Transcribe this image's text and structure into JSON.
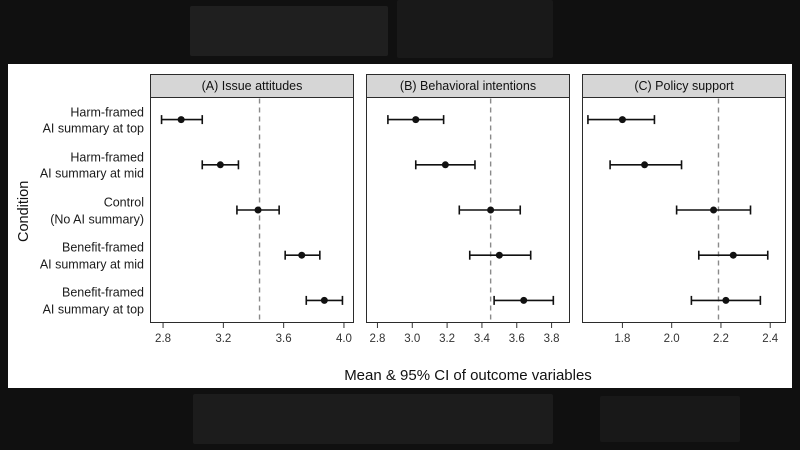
{
  "colors": {
    "letterbox": "#101010",
    "figure_bg": "#ffffff",
    "strip_bg": "#d6d6d6",
    "panel_border": "#2b2b2b",
    "point": "#111111",
    "error_bar": "#111111",
    "ref_line": "#8a8a8a",
    "tick_text": "#333333"
  },
  "chart_data": {
    "type": "scatter",
    "variant": "point-range (mean with 95% CI) forest plot, 3 facets, dashed reference line per facet",
    "ylabel": "Condition",
    "xlabel": "Mean & 95% CI of outcome variables",
    "legend": "none",
    "grid": "off",
    "categories": [
      [
        "Harm-framed",
        "AI summary at top"
      ],
      [
        "Harm-framed",
        "AI summary at mid"
      ],
      [
        "Control",
        "(No AI summary)"
      ],
      [
        "Benefit-framed",
        "AI summary at mid"
      ],
      [
        "Benefit-framed",
        "AI summary at top"
      ]
    ],
    "panels": [
      {
        "title": "(A) Issue attitudes",
        "xlim": [
          2.72,
          4.06
        ],
        "ticks": [
          2.8,
          3.2,
          3.6,
          4.0
        ],
        "ref": 3.44,
        "points": [
          {
            "mean": 2.92,
            "lo": 2.79,
            "hi": 3.06
          },
          {
            "mean": 3.18,
            "lo": 3.06,
            "hi": 3.3
          },
          {
            "mean": 3.43,
            "lo": 3.29,
            "hi": 3.57
          },
          {
            "mean": 3.72,
            "lo": 3.61,
            "hi": 3.84
          },
          {
            "mean": 3.87,
            "lo": 3.75,
            "hi": 3.99
          }
        ]
      },
      {
        "title": "(B) Behavioral intentions",
        "xlim": [
          2.74,
          3.9
        ],
        "ticks": [
          2.8,
          3.0,
          3.2,
          3.4,
          3.6,
          3.8
        ],
        "ref": 3.45,
        "points": [
          {
            "mean": 3.02,
            "lo": 2.86,
            "hi": 3.18
          },
          {
            "mean": 3.19,
            "lo": 3.02,
            "hi": 3.36
          },
          {
            "mean": 3.45,
            "lo": 3.27,
            "hi": 3.62
          },
          {
            "mean": 3.5,
            "lo": 3.33,
            "hi": 3.68
          },
          {
            "mean": 3.64,
            "lo": 3.47,
            "hi": 3.81
          }
        ]
      },
      {
        "title": "(C) Policy support",
        "xlim": [
          1.64,
          2.46
        ],
        "ticks": [
          1.8,
          2.0,
          2.2,
          2.4
        ],
        "ref": 2.19,
        "points": [
          {
            "mean": 1.8,
            "lo": 1.66,
            "hi": 1.93
          },
          {
            "mean": 1.89,
            "lo": 1.75,
            "hi": 2.04
          },
          {
            "mean": 2.17,
            "lo": 2.02,
            "hi": 2.32
          },
          {
            "mean": 2.25,
            "lo": 2.11,
            "hi": 2.39
          },
          {
            "mean": 2.22,
            "lo": 2.08,
            "hi": 2.36
          }
        ]
      }
    ]
  }
}
